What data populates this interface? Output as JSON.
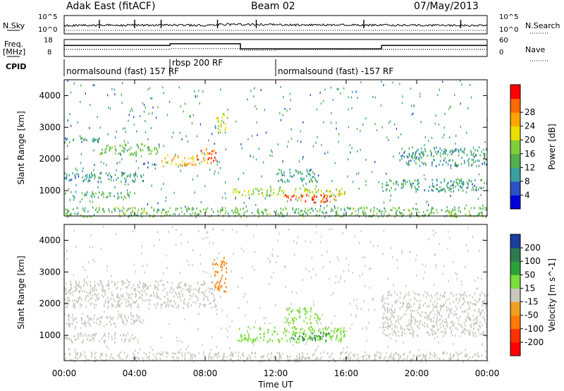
{
  "header": {
    "radar": "Adak East (fitACF)",
    "beam": "Beam 02",
    "date": "07/May/2013"
  },
  "side_labels": {
    "nsky": "N.Sky",
    "freq": "Freq.",
    "freq_unit": "[MHz]",
    "cpid": "CPID",
    "nsearch": "N.Search",
    "nave": "Nave"
  },
  "strip_ticks": {
    "noise_left": [
      "10^5",
      "10^0"
    ],
    "noise_right": [
      "10^5",
      "10^0"
    ],
    "freq_left": [
      "18",
      "8"
    ],
    "nave_right": [
      "60",
      "0"
    ]
  },
  "cpid_segments": [
    {
      "label": "normalsound (fast) 157 RF",
      "start": 0,
      "end": 6.0
    },
    {
      "label": "rbsp 200 RF",
      "start": 6.0,
      "end": 12.0
    },
    {
      "label": "normalsound (fast) -157 RF",
      "start": 12.0,
      "end": 24.0
    }
  ],
  "time_axis": {
    "label": "Time UT",
    "range": [
      0,
      24
    ],
    "ticks": [
      "00:00",
      "04:00",
      "08:00",
      "12:00",
      "16:00",
      "20:00",
      "00:00"
    ],
    "tick_values": [
      0,
      4,
      8,
      12,
      16,
      20,
      24
    ]
  },
  "range_axis": {
    "label": "Slant Range [km]",
    "range": [
      200,
      4500
    ],
    "ticks": [
      "1000",
      "2000",
      "3000",
      "4000"
    ],
    "tick_values": [
      1000,
      2000,
      3000,
      4000
    ]
  },
  "power_scale": {
    "label": "Power [dB]",
    "ticks": [
      "4",
      "8",
      "12",
      "16",
      "20",
      "24",
      "28"
    ],
    "colors": [
      "#0000dd",
      "#2a52c4",
      "#3aa0a0",
      "#55b050",
      "#7ccf3a",
      "#e8e000",
      "#ffa500",
      "#ff6a00",
      "#ff0000"
    ]
  },
  "velocity_scale": {
    "label": "Velocity [m s^-1]",
    "ticks": [
      "200",
      "100",
      "50",
      "15",
      "-15",
      "-50",
      "-100",
      "-200"
    ],
    "colors": [
      "#1a3fa0",
      "#2e7a50",
      "#2da13a",
      "#7bdc3a",
      "#c8c8c0",
      "#f0a020",
      "#ff7a00",
      "#ff3000",
      "#ff0000"
    ]
  },
  "chart_data": [
    {
      "type": "table",
      "name": "N.Sky noise",
      "x": [
        0,
        2,
        4,
        6,
        8,
        9,
        12,
        14,
        16,
        18,
        20,
        22,
        24
      ],
      "values": [
        1.2,
        1.3,
        1.4,
        1.5,
        1.3,
        2.0,
        1.7,
        1.5,
        1.6,
        1.4,
        1.4,
        1.3,
        1.2
      ]
    },
    {
      "type": "line",
      "name": "Freq.",
      "x": [
        0,
        6,
        6.01,
        10,
        10.01,
        18,
        18.01,
        24
      ],
      "values": [
        14.5,
        14.5,
        15.5,
        15.5,
        12.5,
        12.5,
        14.5,
        14.5
      ]
    },
    {
      "type": "line",
      "name": "Nave",
      "x": [
        0,
        6,
        6.01,
        10,
        10.01,
        12,
        12.01,
        24
      ],
      "values": [
        25,
        25,
        28,
        28,
        22,
        22,
        25,
        25
      ]
    },
    {
      "type": "heatmap",
      "name": "Power",
      "unit": "dB",
      "xlim": [
        0,
        24
      ],
      "ylim": [
        200,
        4500
      ],
      "features": [
        {
          "t": [
            0.0,
            2.0
          ],
          "r": [
            2550,
            2750
          ],
          "level": 8
        },
        {
          "t": [
            2.0,
            5.5
          ],
          "r": [
            2150,
            2500
          ],
          "level": 12
        },
        {
          "t": [
            5.5,
            7.5
          ],
          "r": [
            1800,
            2150
          ],
          "level": 20
        },
        {
          "t": [
            7.5,
            8.6
          ],
          "r": [
            1900,
            2350
          ],
          "level": 24
        },
        {
          "t": [
            0.0,
            4.5
          ],
          "r": [
            1300,
            1600
          ],
          "level": 8
        },
        {
          "t": [
            0.0,
            4.0
          ],
          "r": [
            800,
            1000
          ],
          "level": 10
        },
        {
          "t": [
            8.6,
            9.2
          ],
          "r": [
            2800,
            3500
          ],
          "level": 16
        },
        {
          "t": [
            9.5,
            16.0
          ],
          "r": [
            850,
            1100
          ],
          "level": 16
        },
        {
          "t": [
            12.5,
            15.5
          ],
          "r": [
            650,
            900
          ],
          "level": 26
        },
        {
          "t": [
            12.0,
            14.5
          ],
          "r": [
            1300,
            1700
          ],
          "level": 8
        },
        {
          "t": [
            18.0,
            24.0
          ],
          "r": [
            1000,
            1400
          ],
          "level": 8
        },
        {
          "t": [
            19.0,
            24.0
          ],
          "r": [
            1800,
            2400
          ],
          "level": 8
        },
        {
          "t": [
            0.0,
            24.0
          ],
          "r": [
            200,
            500
          ],
          "level": 12
        }
      ]
    },
    {
      "type": "heatmap",
      "name": "Velocity",
      "unit": "m s^-1",
      "xlim": [
        0,
        24
      ],
      "ylim": [
        200,
        4500
      ],
      "features": [
        {
          "t": [
            0.0,
            8.6
          ],
          "r": [
            1900,
            2750
          ],
          "v": 0
        },
        {
          "t": [
            0.0,
            4.5
          ],
          "r": [
            1300,
            1700
          ],
          "v": 0
        },
        {
          "t": [
            0.0,
            4.0
          ],
          "r": [
            800,
            1100
          ],
          "v": 0
        },
        {
          "t": [
            8.4,
            9.2
          ],
          "r": [
            2400,
            3500
          ],
          "v": -60
        },
        {
          "t": [
            9.8,
            16.0
          ],
          "r": [
            800,
            1300
          ],
          "v": 30
        },
        {
          "t": [
            12.5,
            14.5
          ],
          "r": [
            1400,
            1900
          ],
          "v": 30
        },
        {
          "t": [
            12.8,
            15.2
          ],
          "r": [
            850,
            1100
          ],
          "v": 100
        },
        {
          "t": [
            18.0,
            24.0
          ],
          "r": [
            1000,
            2400
          ],
          "v": 0
        },
        {
          "t": [
            0.0,
            24.0
          ],
          "r": [
            200,
            500
          ],
          "v": 0
        }
      ]
    }
  ]
}
